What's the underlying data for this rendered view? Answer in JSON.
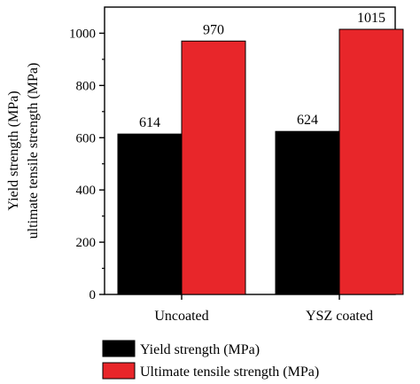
{
  "chart_data": {
    "type": "bar",
    "categories": [
      "Uncoated",
      "YSZ coated"
    ],
    "series": [
      {
        "name": "Yield strength (MPa)",
        "values": [
          614,
          624
        ],
        "color": "#000000"
      },
      {
        "name": "Ultimate tensile strength (MPa)",
        "values": [
          970,
          1015
        ],
        "color": "#e8262a"
      }
    ],
    "data_labels": [
      [
        "614",
        "624"
      ],
      [
        "970",
        "1015"
      ]
    ],
    "ylabel_lines": [
      "Yield strength (MPa)",
      "ultimate tensile strength (MPa)"
    ],
    "ylim": [
      0,
      1100
    ],
    "yticks": [
      0,
      200,
      400,
      600,
      800,
      1000
    ],
    "ytick_labels": [
      "0",
      "200",
      "400",
      "600",
      "800",
      "1000"
    ],
    "grid": false,
    "legend_position": "bottom"
  }
}
